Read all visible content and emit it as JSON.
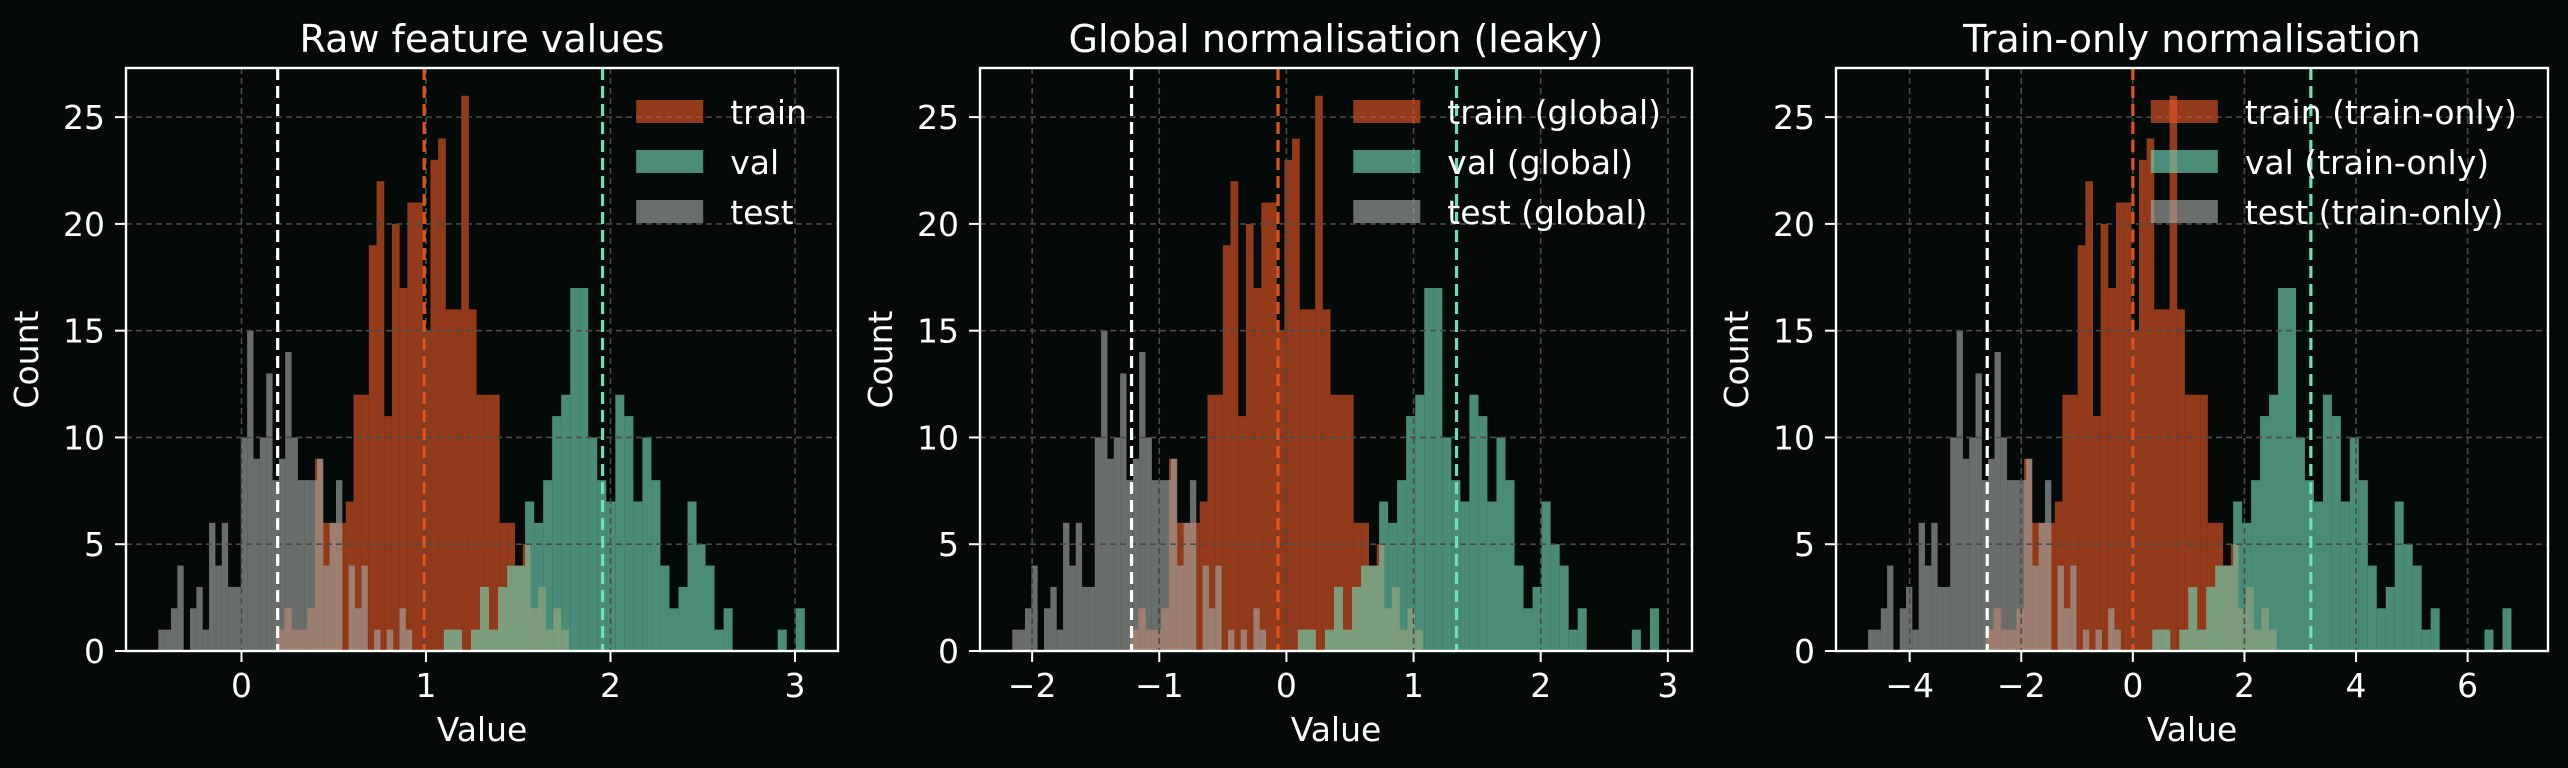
{
  "figure": {
    "background": "#040a0a"
  },
  "chart_data": [
    {
      "type": "histogram",
      "title": "Raw feature values",
      "xlabel": "Value",
      "ylabel": "Count",
      "xlim": [
        -0.626,
        3.233
      ],
      "ylim": [
        0,
        27.3
      ],
      "x_ticks": [
        0,
        1,
        2,
        3
      ],
      "x_tick_labels": [
        "0",
        "1",
        "2",
        "3"
      ],
      "y_ticks": [
        0,
        5,
        10,
        15,
        20,
        25
      ],
      "y_tick_labels": [
        "0",
        "5",
        "10",
        "15",
        "20",
        "25"
      ],
      "grid": true,
      "legend_position": "top-right",
      "series": [
        {
          "name": "train",
          "color": "#e05423",
          "mean_line_color": "#e0521d",
          "mean": 0.99,
          "bin_start": 0.19,
          "bin_width": 0.0417,
          "counts": [
            1,
            2,
            1,
            1,
            2,
            9,
            6,
            6,
            6,
            7,
            12,
            12,
            19,
            22,
            11,
            20,
            17,
            21,
            21,
            15,
            23,
            24,
            16,
            16,
            26,
            16,
            12,
            12,
            12,
            6,
            6,
            4,
            5,
            2,
            3,
            1,
            2,
            1
          ]
        },
        {
          "name": "val",
          "color": "#70d2b2",
          "mean_line_color": "#6ee0b8",
          "mean": 1.957,
          "bin_start": 1.097,
          "bin_width": 0.0489,
          "counts": [
            1,
            1,
            0,
            1,
            3,
            1,
            3,
            4,
            4,
            7,
            6,
            8,
            11,
            12,
            17,
            17,
            10,
            8,
            7,
            12,
            11,
            7,
            10,
            8,
            4,
            2,
            3,
            7,
            5,
            4,
            1,
            2,
            0,
            0,
            0,
            0,
            0,
            1,
            0,
            2
          ]
        },
        {
          "name": "test",
          "color": "#a1a49f",
          "mean_line_color": "#ffffff",
          "mean": 0.196,
          "bin_start": -0.451,
          "bin_width": 0.0344,
          "counts": [
            1,
            1,
            2,
            4,
            0,
            2,
            3,
            1,
            6,
            4,
            6,
            3,
            3,
            10,
            15,
            9,
            10,
            13,
            8,
            9,
            14,
            10,
            8,
            8,
            8,
            9,
            4,
            6,
            8,
            0,
            4,
            2,
            4,
            0,
            1,
            0,
            1,
            0,
            2,
            1
          ]
        }
      ]
    },
    {
      "type": "histogram",
      "title": "Global normalisation (leaky)",
      "xlabel": "Value",
      "ylabel": "Count",
      "xlim": [
        -2.41,
        3.19
      ],
      "ylim": [
        0,
        27.3
      ],
      "x_ticks": [
        -2,
        -1,
        0,
        1,
        2,
        3
      ],
      "x_tick_labels": [
        "−2",
        "−1",
        "0",
        "1",
        "2",
        "3"
      ],
      "y_ticks": [
        0,
        5,
        10,
        15,
        20,
        25
      ],
      "y_tick_labels": [
        "0",
        "5",
        "10",
        "15",
        "20",
        "25"
      ],
      "grid": true,
      "legend_position": "top-right",
      "series": [
        {
          "name": "train (global)",
          "color": "#e05423",
          "mean_line_color": "#e0521d",
          "mean": -0.066,
          "bin_start": -1.226,
          "bin_width": 0.0605,
          "counts": [
            1,
            2,
            1,
            1,
            2,
            9,
            6,
            6,
            6,
            7,
            12,
            12,
            19,
            22,
            11,
            20,
            17,
            21,
            21,
            15,
            23,
            24,
            16,
            16,
            26,
            16,
            12,
            12,
            12,
            6,
            6,
            4,
            5,
            2,
            3,
            1,
            2,
            1
          ]
        },
        {
          "name": "val (global)",
          "color": "#70d2b2",
          "mean_line_color": "#6ee0b8",
          "mean": 1.338,
          "bin_start": 0.09,
          "bin_width": 0.071,
          "counts": [
            1,
            1,
            0,
            1,
            3,
            1,
            3,
            4,
            4,
            7,
            6,
            8,
            11,
            12,
            17,
            17,
            10,
            8,
            7,
            12,
            11,
            7,
            10,
            8,
            4,
            2,
            3,
            7,
            5,
            4,
            1,
            2,
            0,
            0,
            0,
            0,
            0,
            1,
            0,
            2
          ]
        },
        {
          "name": "test (global)",
          "color": "#a1a49f",
          "mean_line_color": "#ffffff",
          "mean": -1.218,
          "bin_start": -2.156,
          "bin_width": 0.0499,
          "counts": [
            1,
            1,
            2,
            4,
            0,
            2,
            3,
            1,
            6,
            4,
            6,
            3,
            3,
            10,
            15,
            9,
            10,
            13,
            8,
            9,
            14,
            10,
            8,
            8,
            8,
            9,
            4,
            6,
            8,
            0,
            4,
            2,
            4,
            0,
            1,
            0,
            1,
            0,
            2,
            1
          ]
        }
      ]
    },
    {
      "type": "histogram",
      "title": "Train-only normalisation",
      "xlabel": "Value",
      "ylabel": "Count",
      "xlim": [
        -5.32,
        7.44
      ],
      "ylim": [
        0,
        27.3
      ],
      "x_ticks": [
        -4,
        -2,
        0,
        2,
        4,
        6
      ],
      "x_tick_labels": [
        "−4",
        "−2",
        "0",
        "2",
        "4",
        "6"
      ],
      "y_ticks": [
        0,
        5,
        10,
        15,
        20,
        25
      ],
      "y_tick_labels": [
        "0",
        "5",
        "10",
        "15",
        "20",
        "25"
      ],
      "grid": true,
      "legend_position": "top-right",
      "series": [
        {
          "name": "train (train-only)",
          "color": "#e05423",
          "mean_line_color": "#e0521d",
          "mean": 0.0,
          "bin_start": -2.635,
          "bin_width": 0.1372,
          "counts": [
            1,
            2,
            1,
            1,
            2,
            9,
            6,
            6,
            6,
            7,
            12,
            12,
            19,
            22,
            11,
            20,
            17,
            21,
            21,
            15,
            23,
            24,
            16,
            16,
            26,
            16,
            12,
            12,
            12,
            6,
            6,
            4,
            5,
            2,
            3,
            1,
            2,
            1
          ]
        },
        {
          "name": "val (train-only)",
          "color": "#70d2b2",
          "mean_line_color": "#6ee0b8",
          "mean": 3.19,
          "bin_start": 0.349,
          "bin_width": 0.1609,
          "counts": [
            1,
            1,
            0,
            1,
            3,
            1,
            3,
            4,
            4,
            7,
            6,
            8,
            11,
            12,
            17,
            17,
            10,
            8,
            7,
            12,
            11,
            7,
            10,
            8,
            4,
            2,
            3,
            7,
            5,
            4,
            1,
            2,
            0,
            0,
            0,
            0,
            0,
            1,
            0,
            2
          ]
        },
        {
          "name": "test (train-only)",
          "color": "#a1a49f",
          "mean_line_color": "#ffffff",
          "mean": -2.61,
          "bin_start": -4.744,
          "bin_width": 0.1132,
          "counts": [
            1,
            1,
            2,
            4,
            0,
            2,
            3,
            1,
            6,
            4,
            6,
            3,
            3,
            10,
            15,
            9,
            10,
            13,
            8,
            9,
            14,
            10,
            8,
            8,
            8,
            9,
            4,
            6,
            8,
            0,
            4,
            2,
            4,
            0,
            1,
            0,
            1,
            0,
            2,
            1
          ]
        }
      ]
    }
  ]
}
